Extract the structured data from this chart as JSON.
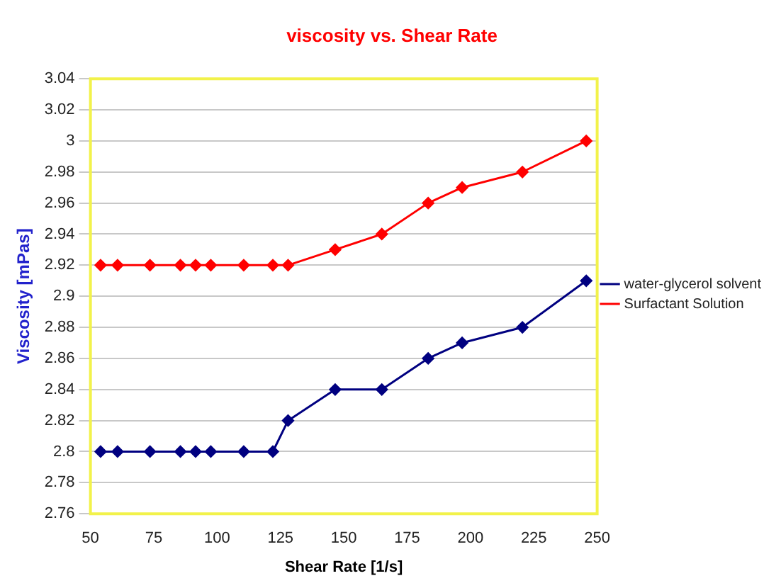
{
  "chart_data": {
    "type": "line",
    "title": "viscosity vs. Shear Rate",
    "xlabel": "Shear Rate [1/s]",
    "ylabel": "Viscosity [mPas]",
    "xlim": [
      50,
      250
    ],
    "xticks": [
      50,
      75,
      100,
      125,
      150,
      175,
      200,
      225,
      250
    ],
    "ylim": [
      2.76,
      3.04
    ],
    "yticks": [
      2.76,
      2.78,
      2.8,
      2.82,
      2.84,
      2.86,
      2.88,
      2.9,
      2.92,
      2.94,
      2.96,
      2.98,
      3,
      3.02,
      3.04
    ],
    "grid": "y",
    "legend": "right",
    "marker": "diamond",
    "line_style": "solid",
    "series": [
      {
        "name": "water-glycerol solvent",
        "color": "#000080",
        "x": [
          54,
          60.7,
          73.5,
          85.5,
          91.5,
          97.5,
          110.5,
          122,
          128,
          146.6,
          165,
          183.3,
          196.7,
          220.5,
          245.7
        ],
        "values": [
          2.8,
          2.8,
          2.8,
          2.8,
          2.8,
          2.8,
          2.8,
          2.8,
          2.82,
          2.84,
          2.84,
          2.86,
          2.87,
          2.88,
          2.91
        ]
      },
      {
        "name": "Surfactant Solution",
        "color": "#ff0000",
        "x": [
          54,
          60.7,
          73.5,
          85.5,
          91.5,
          97.5,
          110.5,
          122,
          128,
          146.6,
          165,
          183.3,
          196.7,
          220.5,
          245.7
        ],
        "values": [
          2.92,
          2.92,
          2.92,
          2.92,
          2.92,
          2.92,
          2.92,
          2.92,
          2.92,
          2.93,
          2.94,
          2.96,
          2.97,
          2.98,
          3
        ]
      }
    ]
  }
}
